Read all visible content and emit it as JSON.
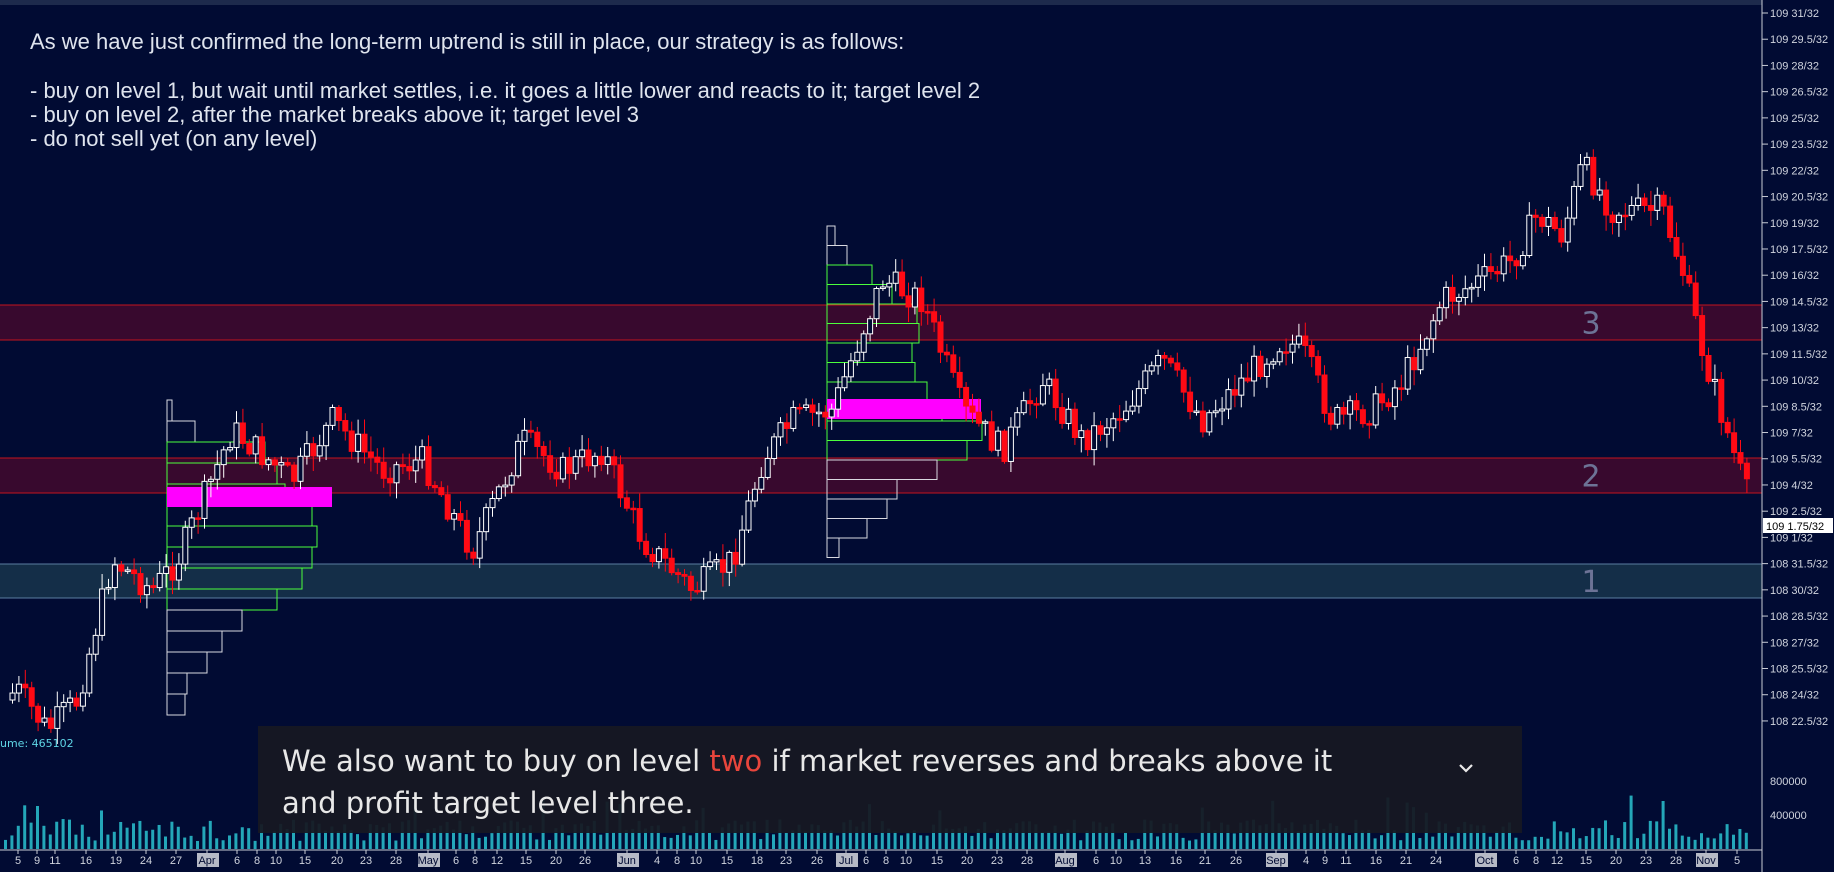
{
  "notes": {
    "line1": "As we have just confirmed the long-term uptrend is still in place, our strategy is as follows:",
    "line2": "- buy on level 1, but wait until market settles, i.e. it goes a little lower and reacts to it; target level 2",
    "line3": "- buy on level 2, after the market breaks above it; target level 3",
    "line4": "- do not sell yet (on any level)"
  },
  "caption": {
    "before": "We also want to buy on level ",
    "highlight": "two",
    "after": " if market reverses and breaks above it and profit target level three."
  },
  "volume_label": "ume: 465102",
  "colors": {
    "background": "#010b33",
    "up": "#ffffff",
    "down": "#ff0a14",
    "zone_red": "#3b0a2e",
    "zone_blue": "#15304a",
    "volume": "#28b8c8",
    "poc": "#ff00ff",
    "profile_green": "#4cff3c"
  },
  "chart_data": {
    "type": "candlestick",
    "price_axis_labels": [
      "109 31/32",
      "109 29.5/32",
      "109 28/32",
      "109 26.5/32",
      "109 25/32",
      "109 23.5/32",
      "109 22/32",
      "109 20.5/32",
      "109 19/32",
      "109 17.5/32",
      "109 16/32",
      "109 14.5/32",
      "109 13/32",
      "109 11.5/32",
      "109 10/32",
      "109 8.5/32",
      "109 7/32",
      "109 5.5/32",
      "109 4/32",
      "109 2.5/32",
      "109 1/32",
      "108 31.5/32",
      "108 30/32",
      "108 28.5/32",
      "108 27/32",
      "108 25.5/32",
      "108 24/32",
      "108 22.5/32"
    ],
    "current_price_label": "109 1.75/32",
    "volume_axis_labels": [
      "800000",
      "400000"
    ],
    "date_labels": [
      {
        "t": "5",
        "x": 18
      },
      {
        "t": "9",
        "x": 37
      },
      {
        "t": "11",
        "x": 55
      },
      {
        "t": "16",
        "x": 86
      },
      {
        "t": "19",
        "x": 116
      },
      {
        "t": "24",
        "x": 146
      },
      {
        "t": "27",
        "x": 176
      },
      {
        "t": "Apr",
        "x": 207,
        "month": true
      },
      {
        "t": "6",
        "x": 237
      },
      {
        "t": "8",
        "x": 257
      },
      {
        "t": "10",
        "x": 276
      },
      {
        "t": "15",
        "x": 305
      },
      {
        "t": "20",
        "x": 337
      },
      {
        "t": "23",
        "x": 366
      },
      {
        "t": "28",
        "x": 396
      },
      {
        "t": "May",
        "x": 428,
        "month": true
      },
      {
        "t": "6",
        "x": 456
      },
      {
        "t": "8",
        "x": 475
      },
      {
        "t": "12",
        "x": 497
      },
      {
        "t": "15",
        "x": 526
      },
      {
        "t": "20",
        "x": 556
      },
      {
        "t": "26",
        "x": 585
      },
      {
        "t": "Jun",
        "x": 627,
        "month": true
      },
      {
        "t": "4",
        "x": 657
      },
      {
        "t": "8",
        "x": 677
      },
      {
        "t": "10",
        "x": 696
      },
      {
        "t": "15",
        "x": 727
      },
      {
        "t": "18",
        "x": 757
      },
      {
        "t": "23",
        "x": 786
      },
      {
        "t": "26",
        "x": 817
      },
      {
        "t": "Jul",
        "x": 846,
        "month": true
      },
      {
        "t": "6",
        "x": 866
      },
      {
        "t": "8",
        "x": 886
      },
      {
        "t": "10",
        "x": 906
      },
      {
        "t": "15",
        "x": 937
      },
      {
        "t": "20",
        "x": 967
      },
      {
        "t": "23",
        "x": 997
      },
      {
        "t": "28",
        "x": 1027
      },
      {
        "t": "Aug",
        "x": 1065,
        "month": true
      },
      {
        "t": "6",
        "x": 1096
      },
      {
        "t": "10",
        "x": 1116
      },
      {
        "t": "13",
        "x": 1145
      },
      {
        "t": "16",
        "x": 1176
      },
      {
        "t": "21",
        "x": 1205
      },
      {
        "t": "26",
        "x": 1236
      },
      {
        "t": "Sep",
        "x": 1276,
        "month": true
      },
      {
        "t": "4",
        "x": 1306
      },
      {
        "t": "9",
        "x": 1325
      },
      {
        "t": "11",
        "x": 1346
      },
      {
        "t": "16",
        "x": 1376
      },
      {
        "t": "21",
        "x": 1406
      },
      {
        "t": "24",
        "x": 1436
      },
      {
        "t": "Oct",
        "x": 1485,
        "month": true
      },
      {
        "t": "6",
        "x": 1516
      },
      {
        "t": "8",
        "x": 1536
      },
      {
        "t": "12",
        "x": 1557
      },
      {
        "t": "15",
        "x": 1586
      },
      {
        "t": "20",
        "x": 1616
      },
      {
        "t": "23",
        "x": 1646
      },
      {
        "t": "28",
        "x": 1676
      },
      {
        "t": "Nov",
        "x": 1706,
        "month": true
      },
      {
        "t": "5",
        "x": 1737
      }
    ],
    "levels": [
      {
        "label": "3",
        "low": "109 12.25/32",
        "high": "109 14.25/32",
        "color": "red"
      },
      {
        "label": "2",
        "low": "109 3.5/32",
        "high": "109 5.5/32",
        "color": "red"
      },
      {
        "label": "1",
        "low": "108 30.5/32",
        "high": "108 32/32",
        "color": "blue"
      }
    ]
  }
}
